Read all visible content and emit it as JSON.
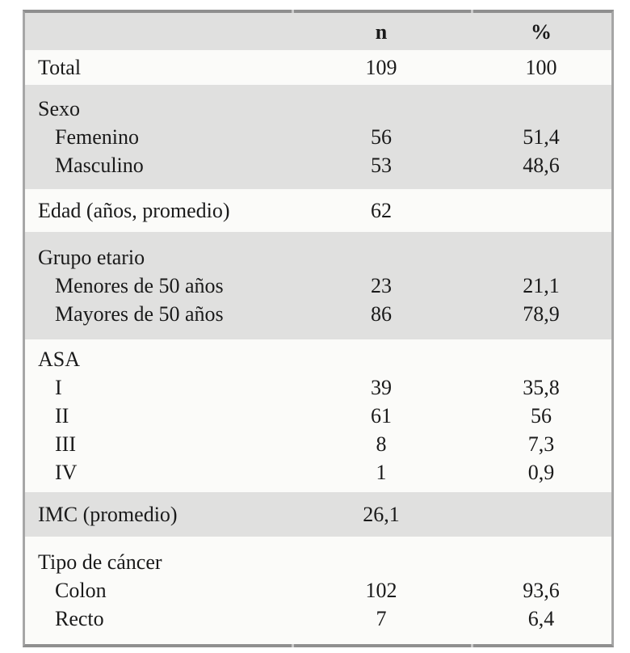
{
  "table": {
    "header": {
      "label": "",
      "n": "n",
      "pct": "%"
    },
    "colors": {
      "stripe": "#e0e0df",
      "row": "#fbfbf9",
      "border_dark": "#8f8f8f",
      "border_side": "#a6a6a6",
      "text": "#1a1a1a"
    },
    "sections": [
      {
        "shade": "white",
        "rows": [
          {
            "label": "Total",
            "indent": false,
            "n": "109",
            "pct": "100"
          }
        ]
      },
      {
        "shade": "gray",
        "rows": [
          {
            "label": "Sexo",
            "indent": false,
            "n": "",
            "pct": ""
          },
          {
            "label": "Femenino",
            "indent": true,
            "n": "56",
            "pct": "51,4"
          },
          {
            "label": "Masculino",
            "indent": true,
            "n": "53",
            "pct": "48,6"
          }
        ]
      },
      {
        "shade": "white",
        "rows": [
          {
            "label": "Edad (años, promedio)",
            "indent": false,
            "n": "62",
            "pct": ""
          }
        ]
      },
      {
        "shade": "gray",
        "rows": [
          {
            "label": "Grupo etario",
            "indent": false,
            "n": "",
            "pct": ""
          },
          {
            "label": "Menores de 50 años",
            "indent": true,
            "n": "23",
            "pct": "21,1"
          },
          {
            "label": "Mayores de 50 años",
            "indent": true,
            "n": "86",
            "pct": "78,9"
          }
        ]
      },
      {
        "shade": "white",
        "rows": [
          {
            "label": "ASA",
            "indent": false,
            "n": "",
            "pct": ""
          },
          {
            "label": "I",
            "indent": true,
            "n": "39",
            "pct": "35,8"
          },
          {
            "label": "II",
            "indent": true,
            "n": "61",
            "pct": "56"
          },
          {
            "label": "III",
            "indent": true,
            "n": "8",
            "pct": "7,3"
          },
          {
            "label": "IV",
            "indent": true,
            "n": "1",
            "pct": "0,9"
          }
        ]
      },
      {
        "shade": "gray",
        "rows": [
          {
            "label": "IMC (promedio)",
            "indent": false,
            "n": "26,1",
            "pct": ""
          }
        ]
      },
      {
        "shade": "white",
        "rows": [
          {
            "label": "Tipo de cáncer",
            "indent": false,
            "n": "",
            "pct": ""
          },
          {
            "label": "Colon",
            "indent": true,
            "n": "102",
            "pct": "93,6"
          },
          {
            "label": "Recto",
            "indent": true,
            "n": "7",
            "pct": "6,4"
          }
        ]
      }
    ]
  }
}
